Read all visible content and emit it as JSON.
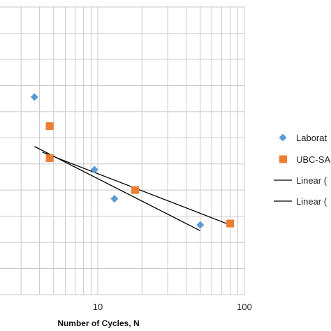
{
  "chart_data": {
    "type": "scatter",
    "title": "",
    "xlabel": "Number of Cycles, N",
    "ylabel": "",
    "x_scale": "log",
    "xlim": [
      1,
      100
    ],
    "x_ticks": [
      {
        "value": 10,
        "label": "10"
      },
      {
        "value": 100,
        "label": "100"
      }
    ],
    "y_gridlines": 11,
    "grid": true,
    "legend_position": "right",
    "series": [
      {
        "name": "Laborat",
        "kind": "points",
        "marker": "diamond",
        "color": "#5b9bd5",
        "points": [
          {
            "x": 3.7,
            "y": 0.68
          },
          {
            "x": 9.5,
            "y": 0.43
          },
          {
            "x": 13,
            "y": 0.33
          },
          {
            "x": 50,
            "y": 0.24
          }
        ]
      },
      {
        "name": "UBC-SA",
        "kind": "points",
        "marker": "square",
        "color": "#ed7d31",
        "points": [
          {
            "x": 4.7,
            "y": 0.58
          },
          {
            "x": 4.7,
            "y": 0.47
          },
          {
            "x": 18,
            "y": 0.36
          },
          {
            "x": 80,
            "y": 0.245
          }
        ]
      },
      {
        "name": "Linear (",
        "kind": "line",
        "color": "#000000",
        "points": [
          {
            "x": 3.7,
            "y": 0.51
          },
          {
            "x": 50,
            "y": 0.22
          }
        ]
      },
      {
        "name": "Linear (",
        "kind": "line",
        "color": "#000000",
        "points": [
          {
            "x": 4.2,
            "y": 0.49
          },
          {
            "x": 80,
            "y": 0.24
          }
        ]
      }
    ]
  }
}
